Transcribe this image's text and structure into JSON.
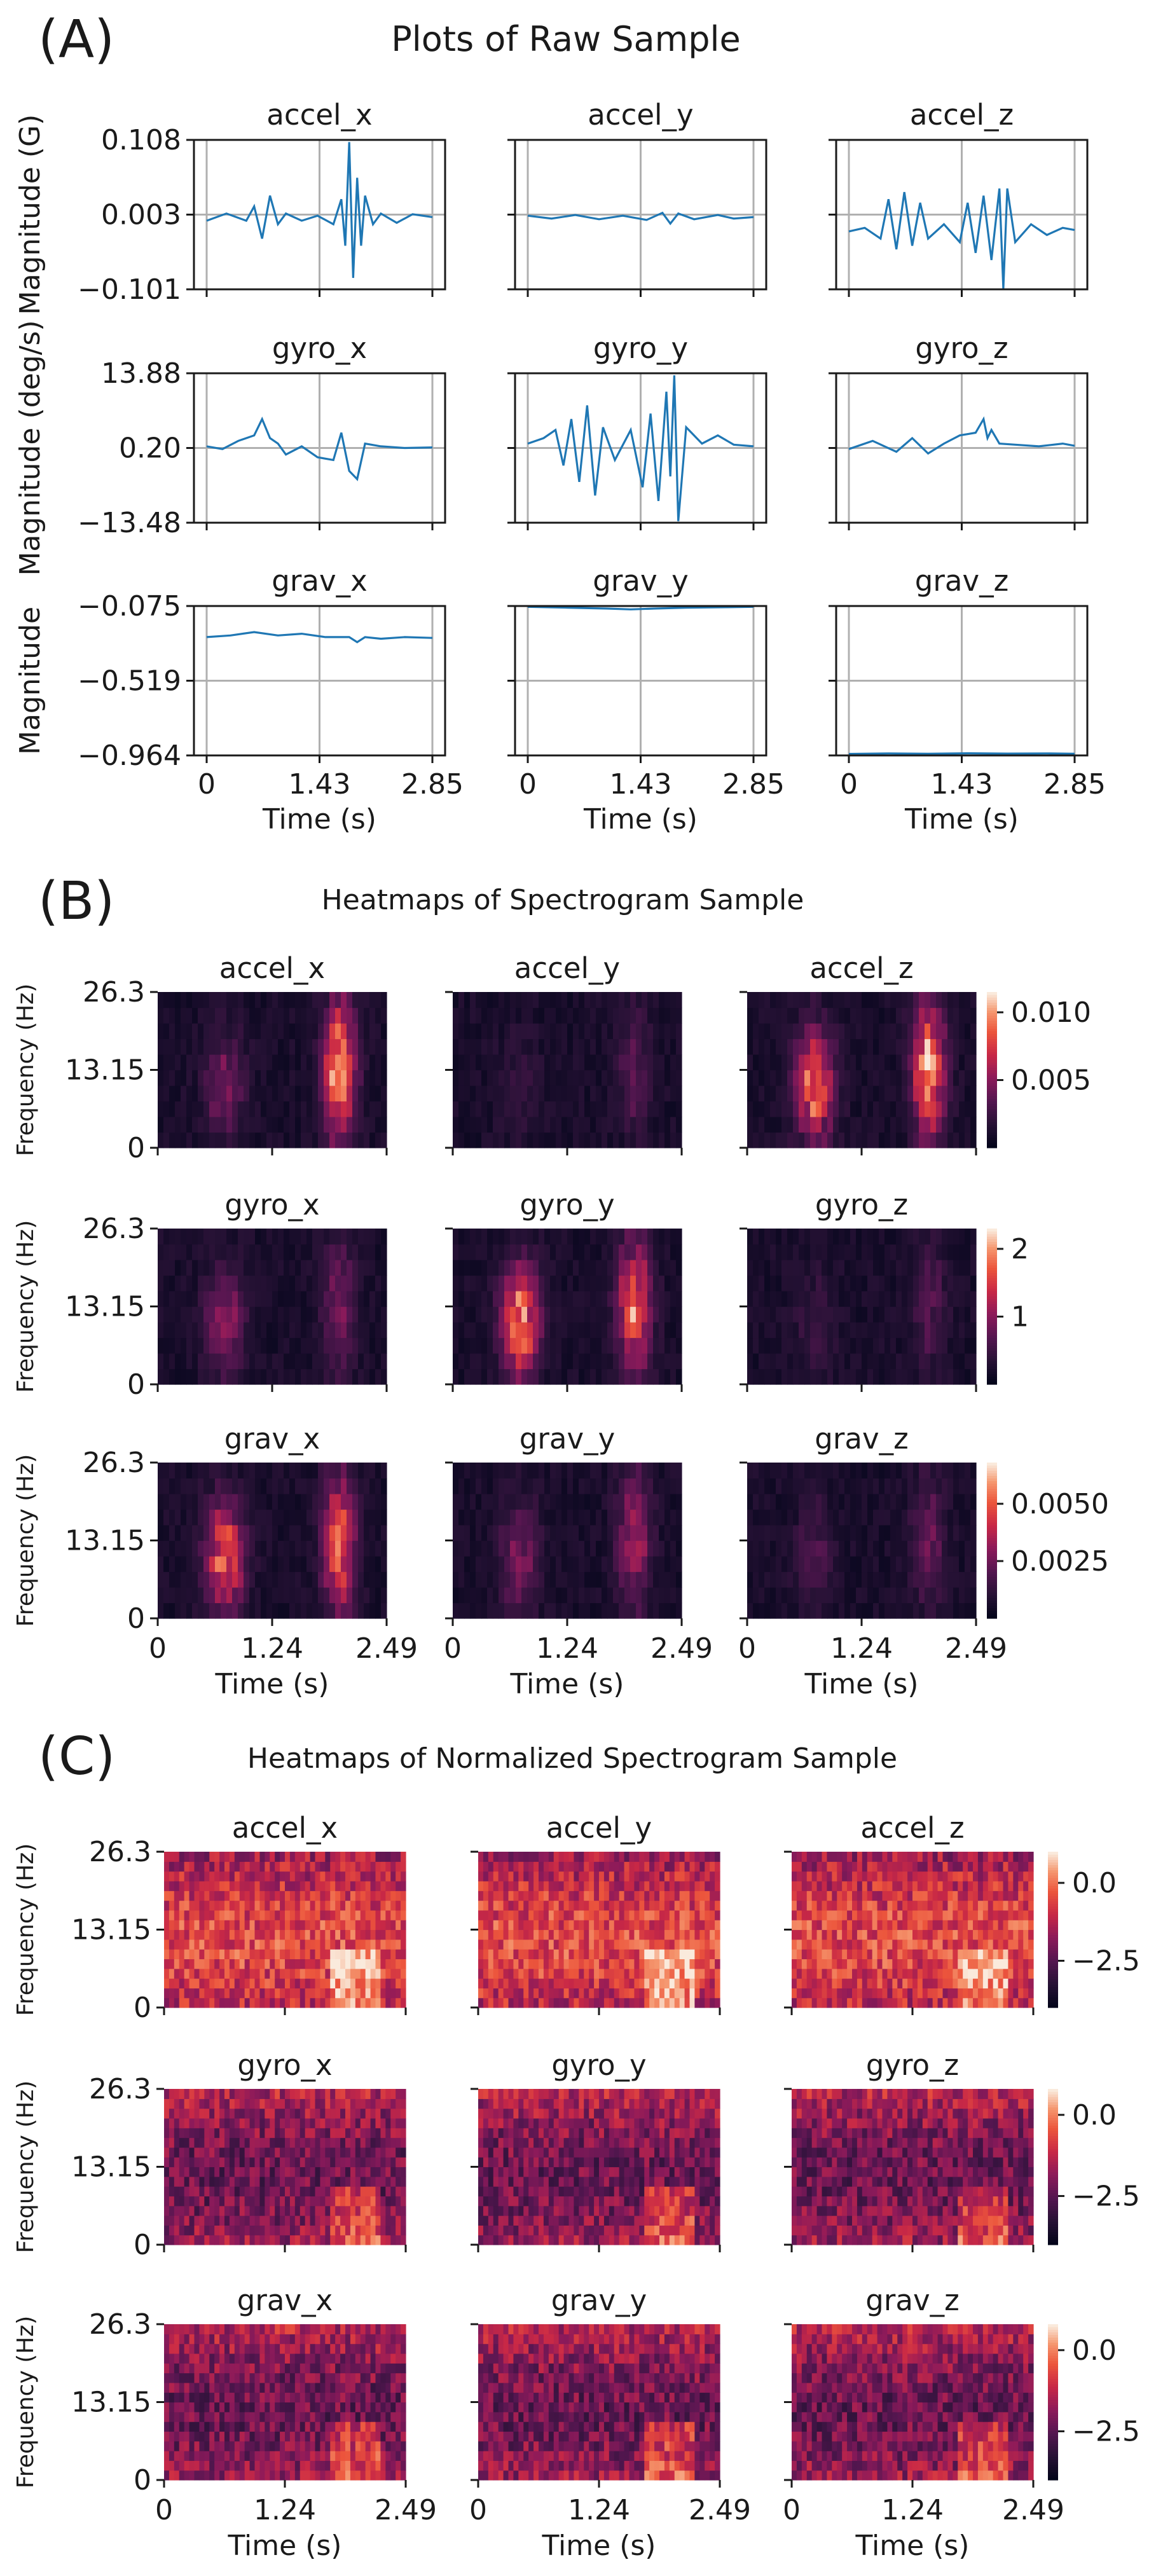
{
  "colors": {
    "line": "#1f77b4",
    "grid": "#b0b0b0",
    "axis": "#1a1a1a",
    "text": "#1a1a1a"
  },
  "sensors": [
    "accel_x",
    "accel_y",
    "accel_z",
    "gyro_x",
    "gyro_y",
    "gyro_z",
    "grav_x",
    "grav_y",
    "grav_z"
  ],
  "chart_data": [
    {
      "id": "A",
      "panel_label": "(A)",
      "type": "line",
      "title": "Plots of Raw Sample",
      "xlabel": "Time (s)",
      "xlim": [
        0,
        2.85
      ],
      "xticks": [
        "0",
        "1.43",
        "2.85"
      ],
      "rows": [
        {
          "ylabel": "Magnitude (G)",
          "ylim": [
            -0.101,
            0.108
          ],
          "yticks": [
            "0.108",
            "0.003",
            "−0.101"
          ],
          "subplots": [
            {
              "title": "accel_x",
              "x": [
                0,
                0.25,
                0.5,
                0.6,
                0.7,
                0.8,
                0.9,
                1.0,
                1.2,
                1.4,
                1.6,
                1.7,
                1.75,
                1.8,
                1.85,
                1.9,
                1.95,
                2.0,
                2.1,
                2.2,
                2.4,
                2.6,
                2.85
              ],
              "y": [
                -0.005,
                0.005,
                -0.005,
                0.015,
                -0.03,
                0.03,
                -0.01,
                0.005,
                -0.005,
                0.002,
                -0.01,
                0.025,
                -0.04,
                0.105,
                -0.085,
                0.055,
                -0.04,
                0.03,
                -0.01,
                0.005,
                -0.008,
                0.004,
                0.0
              ]
            },
            {
              "title": "accel_y",
              "x": [
                0,
                0.3,
                0.6,
                0.9,
                1.2,
                1.5,
                1.7,
                1.8,
                1.9,
                2.1,
                2.4,
                2.6,
                2.85
              ],
              "y": [
                0.002,
                -0.002,
                0.003,
                -0.003,
                0.002,
                -0.004,
                0.006,
                -0.009,
                0.005,
                -0.003,
                0.003,
                -0.002,
                0.0
              ]
            },
            {
              "title": "accel_z",
              "x": [
                0,
                0.2,
                0.4,
                0.5,
                0.6,
                0.7,
                0.8,
                0.9,
                1.0,
                1.2,
                1.4,
                1.5,
                1.6,
                1.7,
                1.8,
                1.9,
                1.95,
                2.0,
                2.1,
                2.3,
                2.5,
                2.7,
                2.85
              ],
              "y": [
                -0.02,
                -0.015,
                -0.03,
                0.025,
                -0.045,
                0.035,
                -0.04,
                0.02,
                -0.03,
                -0.01,
                -0.035,
                0.02,
                -0.05,
                0.03,
                -0.06,
                0.04,
                -0.1,
                0.04,
                -0.035,
                -0.01,
                -0.025,
                -0.015,
                -0.018
              ]
            }
          ]
        },
        {
          "ylabel": "Magnitude (deg/s)",
          "ylim": [
            -13.48,
            13.88
          ],
          "yticks": [
            "13.88",
            "0.20",
            "−13.48"
          ],
          "subplots": [
            {
              "title": "gyro_x",
              "x": [
                0,
                0.2,
                0.4,
                0.6,
                0.7,
                0.8,
                0.9,
                1.0,
                1.2,
                1.4,
                1.6,
                1.7,
                1.8,
                1.9,
                2.0,
                2.2,
                2.5,
                2.85
              ],
              "y": [
                0.5,
                0.0,
                1.5,
                2.5,
                5.5,
                2.0,
                1.0,
                -1.0,
                0.5,
                -1.5,
                -2.0,
                3.0,
                -4.0,
                -5.5,
                1.0,
                0.5,
                0.2,
                0.3
              ]
            },
            {
              "title": "gyro_y",
              "x": [
                0,
                0.2,
                0.35,
                0.45,
                0.55,
                0.65,
                0.75,
                0.85,
                0.95,
                1.1,
                1.3,
                1.45,
                1.55,
                1.65,
                1.75,
                1.8,
                1.85,
                1.9,
                2.0,
                2.2,
                2.4,
                2.6,
                2.85
              ],
              "y": [
                1.0,
                2.0,
                3.5,
                -3.0,
                5.5,
                -6.0,
                8.0,
                -8.5,
                4.0,
                -2.0,
                3.5,
                -7.0,
                6.5,
                -9.5,
                10.5,
                -5.0,
                13.5,
                -13.2,
                4.0,
                1.0,
                2.5,
                0.8,
                0.5
              ]
            },
            {
              "title": "gyro_z",
              "x": [
                0,
                0.3,
                0.6,
                0.8,
                1.0,
                1.2,
                1.4,
                1.6,
                1.7,
                1.75,
                1.8,
                1.9,
                2.1,
                2.4,
                2.7,
                2.85
              ],
              "y": [
                0.0,
                1.5,
                -0.5,
                2.0,
                -0.8,
                1.0,
                2.5,
                3.0,
                5.5,
                2.0,
                3.5,
                1.0,
                0.8,
                0.5,
                1.0,
                0.6
              ]
            }
          ]
        },
        {
          "ylabel": "Magnitude",
          "ylim": [
            -0.964,
            -0.075
          ],
          "yticks": [
            "−0.075",
            "−0.519",
            "−0.964"
          ],
          "subplots": [
            {
              "title": "grav_x",
              "x": [
                0,
                0.3,
                0.6,
                0.9,
                1.2,
                1.5,
                1.8,
                1.9,
                2.0,
                2.2,
                2.5,
                2.85
              ],
              "y": [
                -0.26,
                -0.25,
                -0.23,
                -0.25,
                -0.24,
                -0.26,
                -0.26,
                -0.29,
                -0.26,
                -0.27,
                -0.26,
                -0.265
              ]
            },
            {
              "title": "grav_y",
              "x": [
                0,
                0.5,
                1.0,
                1.3,
                1.6,
                2.0,
                2.5,
                2.85
              ],
              "y": [
                -0.08,
                -0.085,
                -0.09,
                -0.095,
                -0.09,
                -0.085,
                -0.082,
                -0.08
              ]
            },
            {
              "title": "grav_z",
              "x": [
                0,
                0.5,
                1.0,
                1.5,
                2.0,
                2.5,
                2.85
              ],
              "y": [
                -0.955,
                -0.952,
                -0.954,
                -0.951,
                -0.953,
                -0.952,
                -0.954
              ]
            }
          ]
        }
      ]
    },
    {
      "id": "B",
      "panel_label": "(B)",
      "type": "heatmap",
      "title": "Heatmaps of Spectrogram Sample",
      "xlabel": "Time (s)",
      "ylabel": "Frequency (Hz)",
      "xlim": [
        0,
        2.49
      ],
      "ylim": [
        0,
        26.3
      ],
      "xticks": [
        "0",
        "1.24",
        "2.49"
      ],
      "yticks": [
        "26.3",
        "13.15",
        "0"
      ],
      "colormap": "rocket",
      "rows": [
        {
          "colorbar_ticks": [
            "0.010",
            "0.005"
          ],
          "colorbar_values": [
            0.01,
            0.005
          ],
          "vmax": 0.0115,
          "vmin": 0.0,
          "panels": [
            "accel_x",
            "accel_y",
            "accel_z"
          ]
        },
        {
          "colorbar_ticks": [
            "2",
            "1"
          ],
          "colorbar_values": [
            2,
            1
          ],
          "vmax": 2.3,
          "vmin": 0.0,
          "panels": [
            "gyro_x",
            "gyro_y",
            "gyro_z"
          ]
        },
        {
          "colorbar_ticks": [
            "0.0050",
            "0.0025"
          ],
          "colorbar_values": [
            0.005,
            0.0025
          ],
          "vmax": 0.0068,
          "vmin": 0.0,
          "panels": [
            "grav_x",
            "grav_y",
            "grav_z"
          ]
        }
      ]
    },
    {
      "id": "C",
      "panel_label": "(C)",
      "type": "heatmap",
      "title": "Heatmaps of Normalized Spectrogram Sample",
      "xlabel": "Time (s)",
      "ylabel": "Frequency (Hz)",
      "xlim": [
        0,
        2.49
      ],
      "ylim": [
        0,
        26.3
      ],
      "xticks": [
        "0",
        "1.24",
        "2.49"
      ],
      "yticks": [
        "26.3",
        "13.15",
        "0"
      ],
      "colormap": "rocket",
      "rows": [
        {
          "colorbar_ticks": [
            "0.0",
            "−2.5"
          ],
          "colorbar_values": [
            0.0,
            -2.5
          ],
          "vmax": 1.0,
          "vmin": -4.0,
          "panels": [
            "accel_x",
            "accel_y",
            "accel_z"
          ]
        },
        {
          "colorbar_ticks": [
            "0.0",
            "−2.5"
          ],
          "colorbar_values": [
            0.0,
            -2.5
          ],
          "vmax": 0.8,
          "vmin": -4.0,
          "panels": [
            "gyro_x",
            "gyro_y",
            "gyro_z"
          ]
        },
        {
          "colorbar_ticks": [
            "0.0",
            "−2.5"
          ],
          "colorbar_values": [
            0.0,
            -2.5
          ],
          "vmax": 0.8,
          "vmin": -4.0,
          "panels": [
            "grav_x",
            "grav_y",
            "grav_z"
          ]
        }
      ]
    }
  ]
}
